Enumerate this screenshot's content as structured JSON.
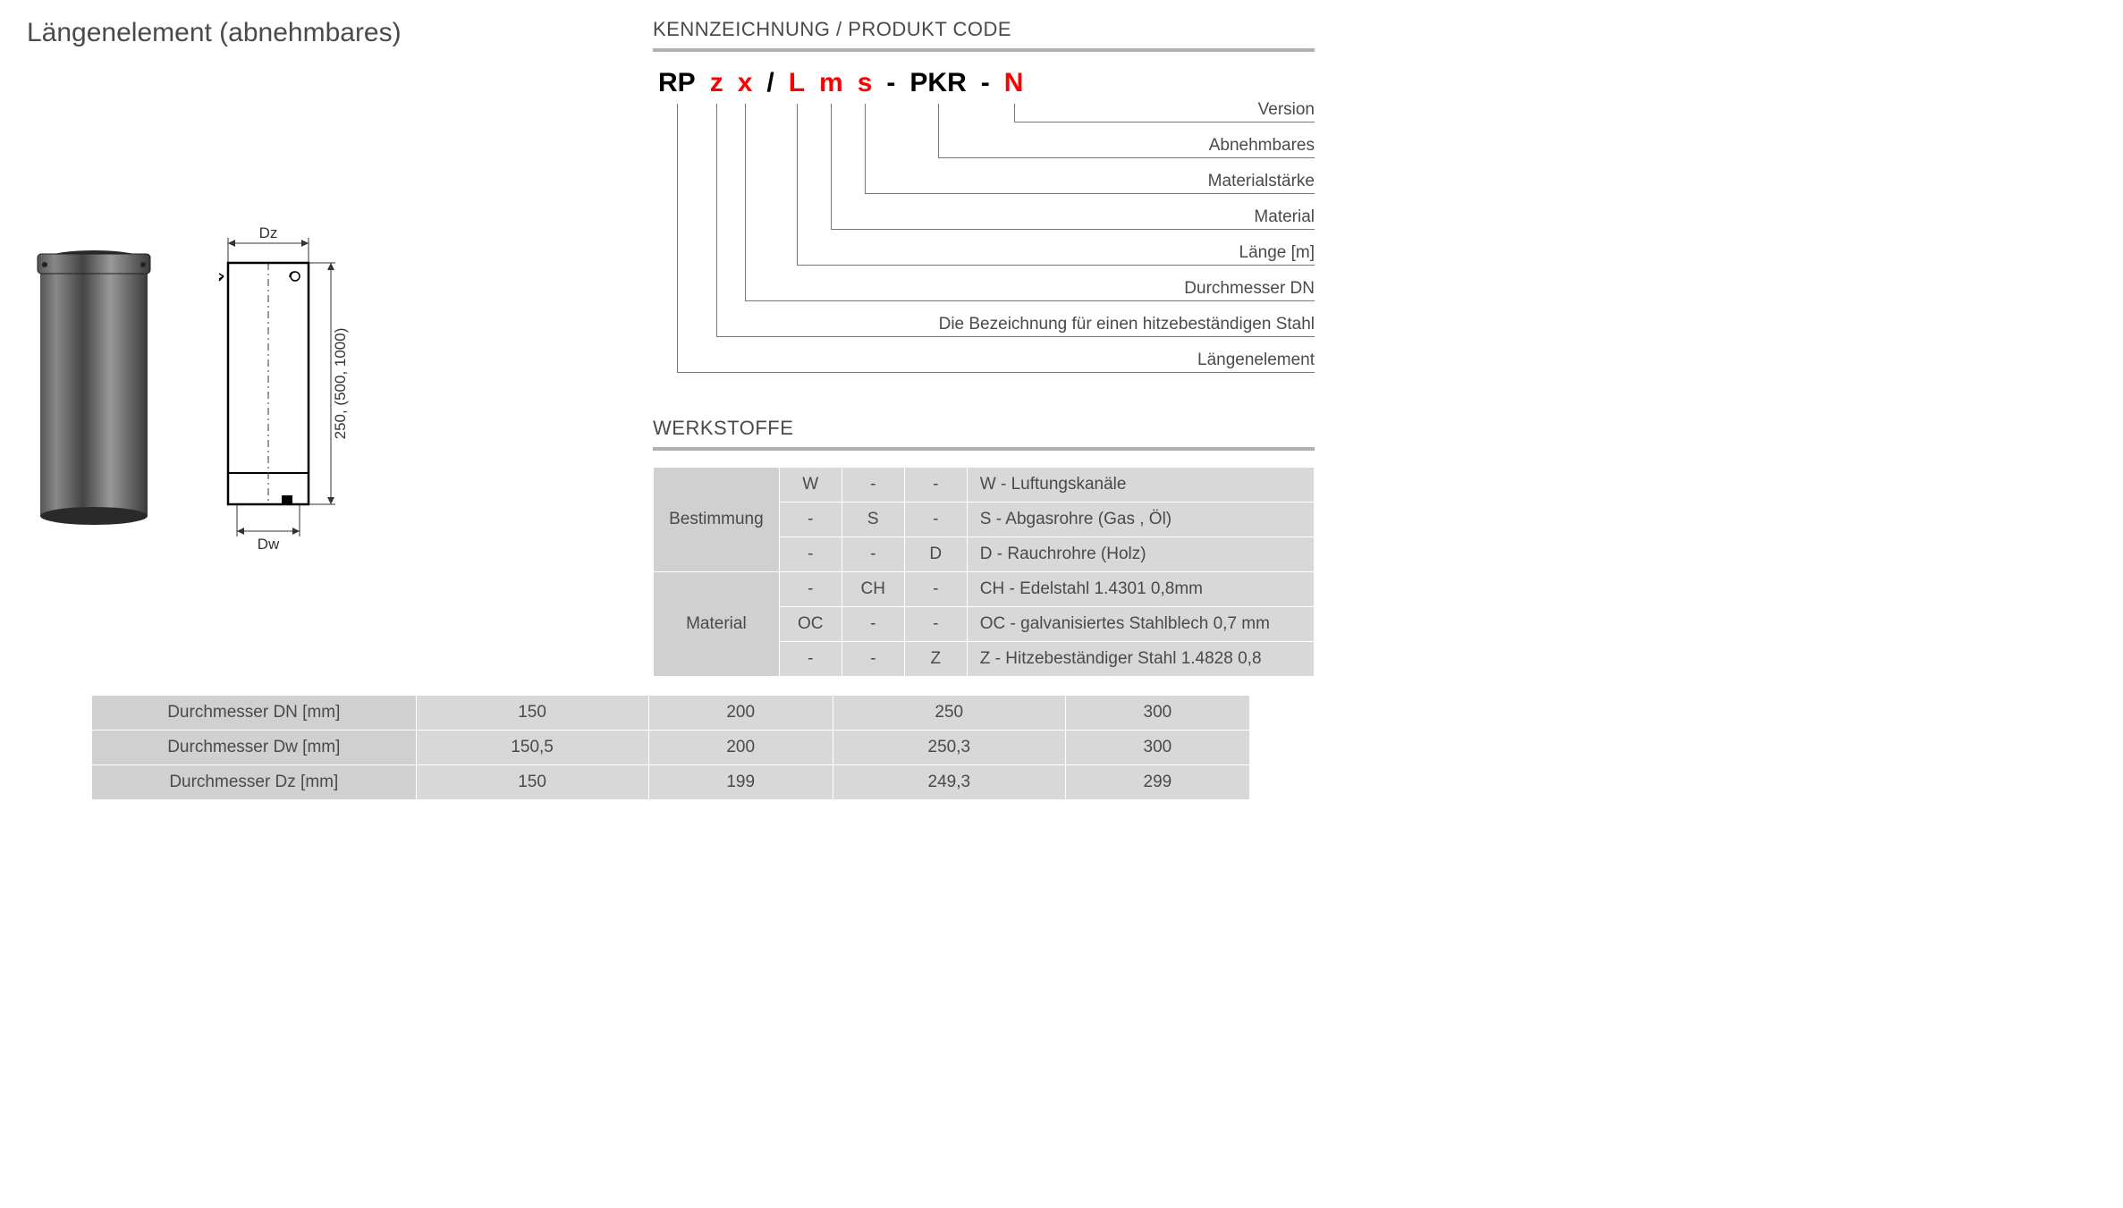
{
  "title": "Längenelement  (abnehmbares)",
  "code_section": {
    "heading": "KENNZEICHNUNG /  PRODUKT CODE",
    "parts": [
      {
        "text": "RP",
        "color": "black"
      },
      {
        "text": "z",
        "color": "red"
      },
      {
        "text": "x",
        "color": "red"
      },
      {
        "text": "/",
        "color": "black"
      },
      {
        "text": "L",
        "color": "red"
      },
      {
        "text": "m",
        "color": "red"
      },
      {
        "text": "s",
        "color": "red"
      },
      {
        "text": "-",
        "color": "black"
      },
      {
        "text": "PKR",
        "color": "black"
      },
      {
        "text": "-",
        "color": "black"
      },
      {
        "text": "N",
        "color": "red"
      }
    ],
    "labels": [
      "Version",
      "Abnehmbares",
      "Materialstärke",
      "Material",
      "Länge [m]",
      "Durchmesser DN",
      "Die Bezeichnung für einen hitzebeständigen Stahl",
      "Längenelement"
    ]
  },
  "materials": {
    "heading": "WERKSTOFFE",
    "row_heads": [
      "Bestimmung",
      "Material"
    ],
    "rows": [
      {
        "group": 0,
        "cells": [
          "W",
          "-",
          "-"
        ],
        "desc": "W - Luftungskanäle"
      },
      {
        "group": 0,
        "cells": [
          "-",
          "S",
          "-"
        ],
        "desc": "S - Abgasrohre (Gas , Öl)"
      },
      {
        "group": 0,
        "cells": [
          "-",
          "-",
          "D"
        ],
        "desc": "D - Rauchrohre (Holz)"
      },
      {
        "group": 1,
        "cells": [
          "-",
          "CH",
          "-"
        ],
        "desc": "CH - Edelstahl 1.4301 0,8mm"
      },
      {
        "group": 1,
        "cells": [
          "OC",
          "-",
          "-"
        ],
        "desc": "OC - galvanisiertes Stahlblech 0,7 mm"
      },
      {
        "group": 1,
        "cells": [
          "-",
          "-",
          "Z"
        ],
        "desc": "Z - Hitzebeständiger Stahl 1.4828 0,8"
      }
    ]
  },
  "dimensions": {
    "headers": [
      "Durchmesser DN [mm]",
      "Durchmesser Dw [mm]",
      "Durchmesser Dz [mm]"
    ],
    "cols": [
      "150",
      "200",
      "250",
      "300"
    ],
    "rows": [
      [
        "150",
        "200",
        "250",
        "300"
      ],
      [
        "150,5",
        "200",
        "250,3",
        "300"
      ],
      [
        "150",
        "199",
        "249,3",
        "299"
      ]
    ]
  },
  "drawing": {
    "dz_label": "Dz",
    "dw_label": "Dw",
    "height_label": "250, (500, 1000)"
  },
  "styling": {
    "bg": "#ffffff",
    "text": "#4a4a4a",
    "red": "#ff0000",
    "black": "#000000",
    "rule": "#b0b0b0",
    "cell_bg": "#d8d8d8",
    "cell_head_bg": "#d0d0d0",
    "border": "#ffffff"
  }
}
